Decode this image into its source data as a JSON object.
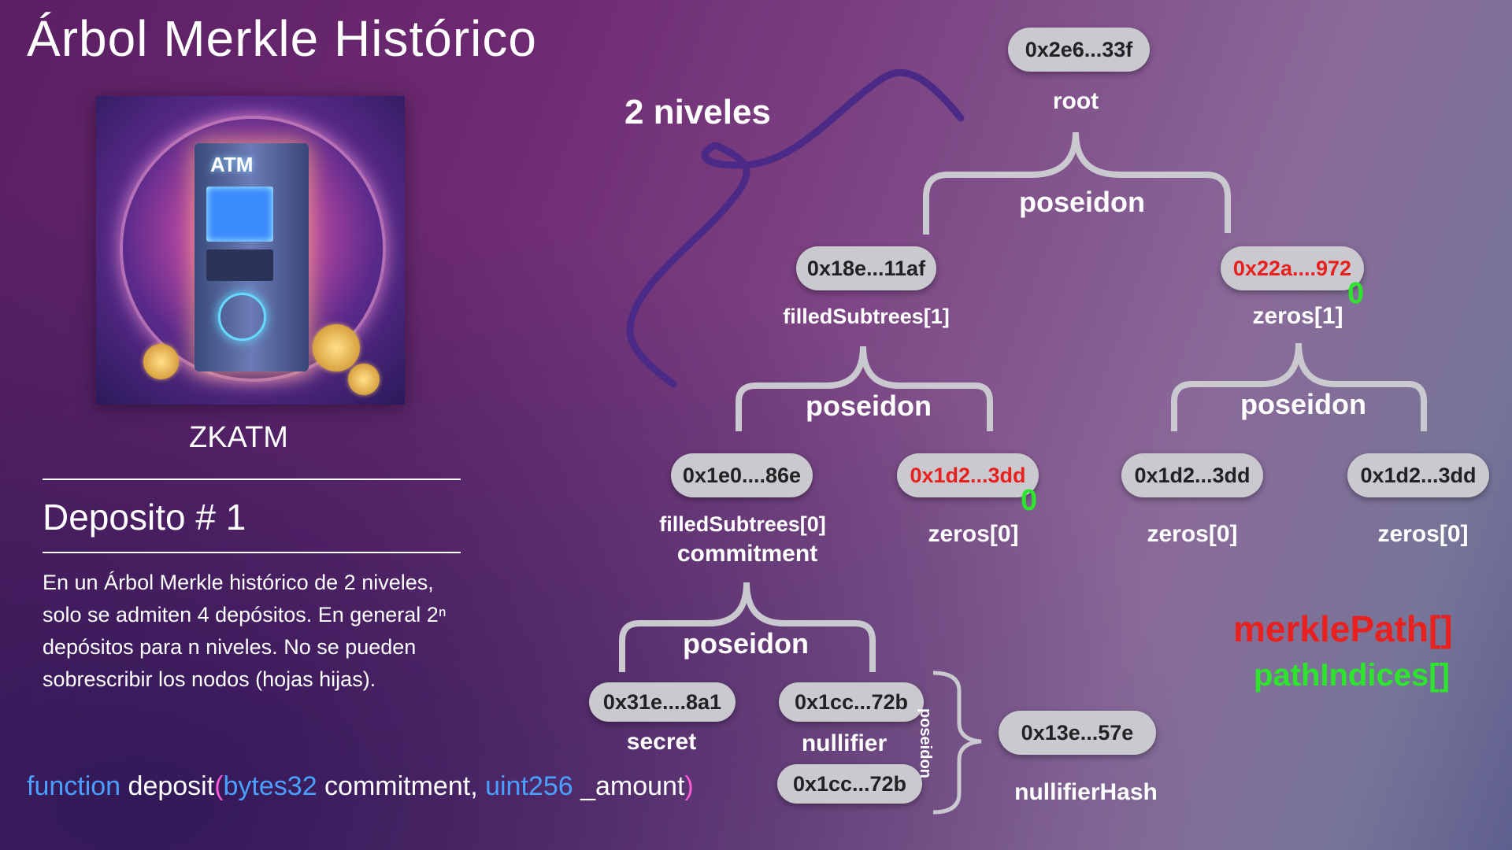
{
  "title": "Árbol Merkle Histórico",
  "image_caption": "ZKATM",
  "section_title": "Deposito # 1",
  "description": "En un Árbol Merkle histórico de 2 niveles, solo se admiten 4 depósitos. En general 2ⁿ depósitos para n niveles. No se pueden sobrescribir los nodos (hojas hijas).",
  "code": {
    "kw_function": "function",
    "fn_name": " deposit",
    "open_paren": "(",
    "type1": "bytes32",
    "param1": " commitment, ",
    "type2": "uint256",
    "param2": " _amount",
    "close_paren": ")"
  },
  "levels_label": "2 niveles",
  "tree": {
    "root_hash": "0x2e6...33f",
    "root_label": "root",
    "op_label": "poseidon",
    "l1_left_hash": "0x18e...11af",
    "l1_left_label": "filledSubtrees[1]",
    "l1_right_hash": "0x22a....972",
    "l1_right_label": "zeros[1]",
    "l1_right_index": "0",
    "leaf0_hash": "0x1e0....86e",
    "leaf0_label": "filledSubtrees[0]",
    "leaf0_label2": "commitment",
    "leaf1_hash": "0x1d2...3dd",
    "leaf1_label": "zeros[0]",
    "leaf1_index": "0",
    "leaf2_hash": "0x1d2...3dd",
    "leaf2_label": "zeros[0]",
    "leaf3_hash": "0x1d2...3dd",
    "leaf3_label": "zeros[0]",
    "secret_hash": "0x31e....8a1",
    "secret_label": "secret",
    "nullifier_hash": "0x1cc...72b",
    "nullifier_label": "nullifier",
    "nullifier_hash2": "0x1cc...72b",
    "nullifierhash_value": "0x13e...57e",
    "nullifierhash_label": "nullifierHash",
    "vertical_op": "poseidon"
  },
  "legend": {
    "merkle_path": "merklePath[]",
    "path_indices": "pathIndices[]"
  },
  "colors": {
    "highlight_red": "#e8201e",
    "index_green": "#2ee52e",
    "keyword_blue": "#4aa0ff",
    "paren_pink": "#ff5bd5",
    "node_gray": "#c9c9cf"
  }
}
